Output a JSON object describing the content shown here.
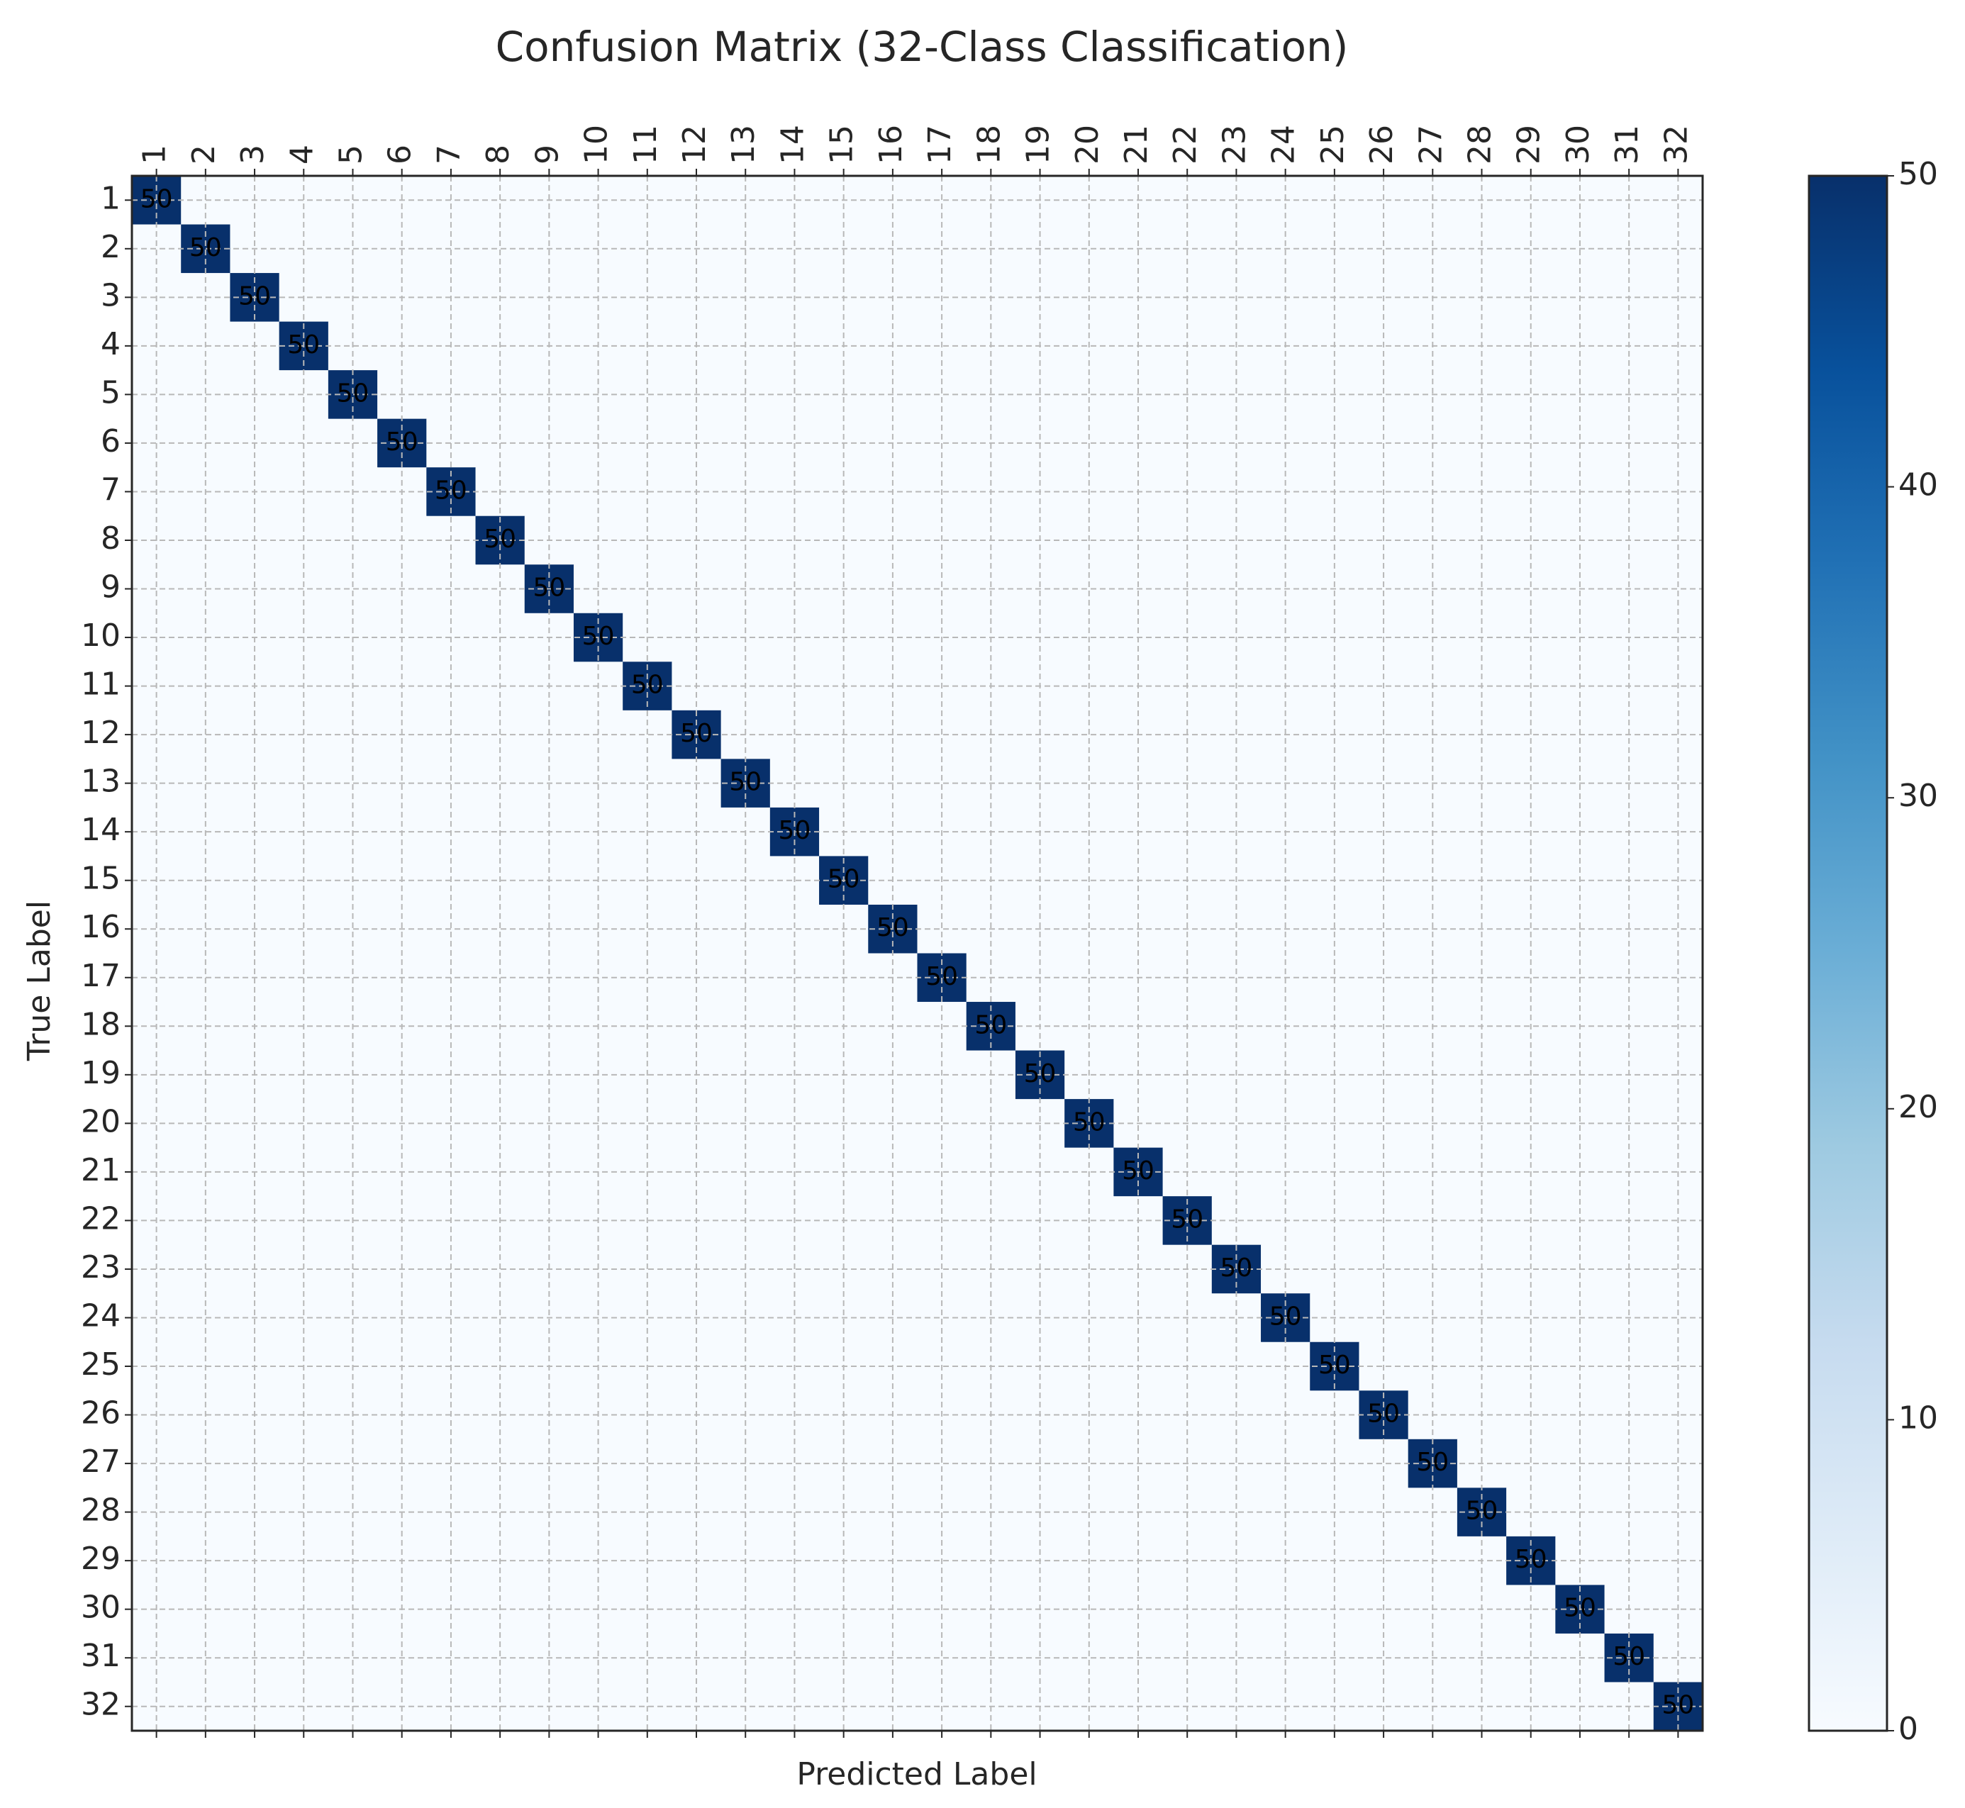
{
  "chart_data": {
    "type": "heatmap",
    "title": "Confusion Matrix (32-Class Classification)",
    "x_label": "Predicted Label",
    "y_label": "True Label",
    "x_categories": [
      "1",
      "2",
      "3",
      "4",
      "5",
      "6",
      "7",
      "8",
      "9",
      "10",
      "11",
      "12",
      "13",
      "14",
      "15",
      "16",
      "17",
      "18",
      "19",
      "20",
      "21",
      "22",
      "23",
      "24",
      "25",
      "26",
      "27",
      "28",
      "29",
      "30",
      "31",
      "32"
    ],
    "y_categories": [
      "1",
      "2",
      "3",
      "4",
      "5",
      "6",
      "7",
      "8",
      "9",
      "10",
      "11",
      "12",
      "13",
      "14",
      "15",
      "16",
      "17",
      "18",
      "19",
      "20",
      "21",
      "22",
      "23",
      "24",
      "25",
      "26",
      "27",
      "28",
      "29",
      "30",
      "31",
      "32"
    ],
    "values": [
      [
        50,
        0,
        0,
        0,
        0,
        0,
        0,
        0,
        0,
        0,
        0,
        0,
        0,
        0,
        0,
        0,
        0,
        0,
        0,
        0,
        0,
        0,
        0,
        0,
        0,
        0,
        0,
        0,
        0,
        0,
        0,
        0
      ],
      [
        0,
        50,
        0,
        0,
        0,
        0,
        0,
        0,
        0,
        0,
        0,
        0,
        0,
        0,
        0,
        0,
        0,
        0,
        0,
        0,
        0,
        0,
        0,
        0,
        0,
        0,
        0,
        0,
        0,
        0,
        0,
        0
      ],
      [
        0,
        0,
        50,
        0,
        0,
        0,
        0,
        0,
        0,
        0,
        0,
        0,
        0,
        0,
        0,
        0,
        0,
        0,
        0,
        0,
        0,
        0,
        0,
        0,
        0,
        0,
        0,
        0,
        0,
        0,
        0,
        0
      ],
      [
        0,
        0,
        0,
        50,
        0,
        0,
        0,
        0,
        0,
        0,
        0,
        0,
        0,
        0,
        0,
        0,
        0,
        0,
        0,
        0,
        0,
        0,
        0,
        0,
        0,
        0,
        0,
        0,
        0,
        0,
        0,
        0
      ],
      [
        0,
        0,
        0,
        0,
        50,
        0,
        0,
        0,
        0,
        0,
        0,
        0,
        0,
        0,
        0,
        0,
        0,
        0,
        0,
        0,
        0,
        0,
        0,
        0,
        0,
        0,
        0,
        0,
        0,
        0,
        0,
        0
      ],
      [
        0,
        0,
        0,
        0,
        0,
        50,
        0,
        0,
        0,
        0,
        0,
        0,
        0,
        0,
        0,
        0,
        0,
        0,
        0,
        0,
        0,
        0,
        0,
        0,
        0,
        0,
        0,
        0,
        0,
        0,
        0,
        0
      ],
      [
        0,
        0,
        0,
        0,
        0,
        0,
        50,
        0,
        0,
        0,
        0,
        0,
        0,
        0,
        0,
        0,
        0,
        0,
        0,
        0,
        0,
        0,
        0,
        0,
        0,
        0,
        0,
        0,
        0,
        0,
        0,
        0
      ],
      [
        0,
        0,
        0,
        0,
        0,
        0,
        0,
        50,
        0,
        0,
        0,
        0,
        0,
        0,
        0,
        0,
        0,
        0,
        0,
        0,
        0,
        0,
        0,
        0,
        0,
        0,
        0,
        0,
        0,
        0,
        0,
        0
      ],
      [
        0,
        0,
        0,
        0,
        0,
        0,
        0,
        0,
        50,
        0,
        0,
        0,
        0,
        0,
        0,
        0,
        0,
        0,
        0,
        0,
        0,
        0,
        0,
        0,
        0,
        0,
        0,
        0,
        0,
        0,
        0,
        0
      ],
      [
        0,
        0,
        0,
        0,
        0,
        0,
        0,
        0,
        0,
        50,
        0,
        0,
        0,
        0,
        0,
        0,
        0,
        0,
        0,
        0,
        0,
        0,
        0,
        0,
        0,
        0,
        0,
        0,
        0,
        0,
        0,
        0
      ],
      [
        0,
        0,
        0,
        0,
        0,
        0,
        0,
        0,
        0,
        0,
        50,
        0,
        0,
        0,
        0,
        0,
        0,
        0,
        0,
        0,
        0,
        0,
        0,
        0,
        0,
        0,
        0,
        0,
        0,
        0,
        0,
        0
      ],
      [
        0,
        0,
        0,
        0,
        0,
        0,
        0,
        0,
        0,
        0,
        0,
        50,
        0,
        0,
        0,
        0,
        0,
        0,
        0,
        0,
        0,
        0,
        0,
        0,
        0,
        0,
        0,
        0,
        0,
        0,
        0,
        0
      ],
      [
        0,
        0,
        0,
        0,
        0,
        0,
        0,
        0,
        0,
        0,
        0,
        0,
        50,
        0,
        0,
        0,
        0,
        0,
        0,
        0,
        0,
        0,
        0,
        0,
        0,
        0,
        0,
        0,
        0,
        0,
        0,
        0
      ],
      [
        0,
        0,
        0,
        0,
        0,
        0,
        0,
        0,
        0,
        0,
        0,
        0,
        0,
        50,
        0,
        0,
        0,
        0,
        0,
        0,
        0,
        0,
        0,
        0,
        0,
        0,
        0,
        0,
        0,
        0,
        0,
        0
      ],
      [
        0,
        0,
        0,
        0,
        0,
        0,
        0,
        0,
        0,
        0,
        0,
        0,
        0,
        0,
        50,
        0,
        0,
        0,
        0,
        0,
        0,
        0,
        0,
        0,
        0,
        0,
        0,
        0,
        0,
        0,
        0,
        0
      ],
      [
        0,
        0,
        0,
        0,
        0,
        0,
        0,
        0,
        0,
        0,
        0,
        0,
        0,
        0,
        0,
        50,
        0,
        0,
        0,
        0,
        0,
        0,
        0,
        0,
        0,
        0,
        0,
        0,
        0,
        0,
        0,
        0
      ],
      [
        0,
        0,
        0,
        0,
        0,
        0,
        0,
        0,
        0,
        0,
        0,
        0,
        0,
        0,
        0,
        0,
        50,
        0,
        0,
        0,
        0,
        0,
        0,
        0,
        0,
        0,
        0,
        0,
        0,
        0,
        0,
        0
      ],
      [
        0,
        0,
        0,
        0,
        0,
        0,
        0,
        0,
        0,
        0,
        0,
        0,
        0,
        0,
        0,
        0,
        0,
        50,
        0,
        0,
        0,
        0,
        0,
        0,
        0,
        0,
        0,
        0,
        0,
        0,
        0,
        0
      ],
      [
        0,
        0,
        0,
        0,
        0,
        0,
        0,
        0,
        0,
        0,
        0,
        0,
        0,
        0,
        0,
        0,
        0,
        0,
        50,
        0,
        0,
        0,
        0,
        0,
        0,
        0,
        0,
        0,
        0,
        0,
        0,
        0
      ],
      [
        0,
        0,
        0,
        0,
        0,
        0,
        0,
        0,
        0,
        0,
        0,
        0,
        0,
        0,
        0,
        0,
        0,
        0,
        0,
        50,
        0,
        0,
        0,
        0,
        0,
        0,
        0,
        0,
        0,
        0,
        0,
        0
      ],
      [
        0,
        0,
        0,
        0,
        0,
        0,
        0,
        0,
        0,
        0,
        0,
        0,
        0,
        0,
        0,
        0,
        0,
        0,
        0,
        0,
        50,
        0,
        0,
        0,
        0,
        0,
        0,
        0,
        0,
        0,
        0,
        0
      ],
      [
        0,
        0,
        0,
        0,
        0,
        0,
        0,
        0,
        0,
        0,
        0,
        0,
        0,
        0,
        0,
        0,
        0,
        0,
        0,
        0,
        0,
        50,
        0,
        0,
        0,
        0,
        0,
        0,
        0,
        0,
        0,
        0
      ],
      [
        0,
        0,
        0,
        0,
        0,
        0,
        0,
        0,
        0,
        0,
        0,
        0,
        0,
        0,
        0,
        0,
        0,
        0,
        0,
        0,
        0,
        0,
        50,
        0,
        0,
        0,
        0,
        0,
        0,
        0,
        0,
        0
      ],
      [
        0,
        0,
        0,
        0,
        0,
        0,
        0,
        0,
        0,
        0,
        0,
        0,
        0,
        0,
        0,
        0,
        0,
        0,
        0,
        0,
        0,
        0,
        0,
        50,
        0,
        0,
        0,
        0,
        0,
        0,
        0,
        0
      ],
      [
        0,
        0,
        0,
        0,
        0,
        0,
        0,
        0,
        0,
        0,
        0,
        0,
        0,
        0,
        0,
        0,
        0,
        0,
        0,
        0,
        0,
        0,
        0,
        0,
        50,
        0,
        0,
        0,
        0,
        0,
        0,
        0
      ],
      [
        0,
        0,
        0,
        0,
        0,
        0,
        0,
        0,
        0,
        0,
        0,
        0,
        0,
        0,
        0,
        0,
        0,
        0,
        0,
        0,
        0,
        0,
        0,
        0,
        0,
        50,
        0,
        0,
        0,
        0,
        0,
        0
      ],
      [
        0,
        0,
        0,
        0,
        0,
        0,
        0,
        0,
        0,
        0,
        0,
        0,
        0,
        0,
        0,
        0,
        0,
        0,
        0,
        0,
        0,
        0,
        0,
        0,
        0,
        0,
        50,
        0,
        0,
        0,
        0,
        0
      ],
      [
        0,
        0,
        0,
        0,
        0,
        0,
        0,
        0,
        0,
        0,
        0,
        0,
        0,
        0,
        0,
        0,
        0,
        0,
        0,
        0,
        0,
        0,
        0,
        0,
        0,
        0,
        0,
        50,
        0,
        0,
        0,
        0
      ],
      [
        0,
        0,
        0,
        0,
        0,
        0,
        0,
        0,
        0,
        0,
        0,
        0,
        0,
        0,
        0,
        0,
        0,
        0,
        0,
        0,
        0,
        0,
        0,
        0,
        0,
        0,
        0,
        0,
        50,
        0,
        0,
        0
      ],
      [
        0,
        0,
        0,
        0,
        0,
        0,
        0,
        0,
        0,
        0,
        0,
        0,
        0,
        0,
        0,
        0,
        0,
        0,
        0,
        0,
        0,
        0,
        0,
        0,
        0,
        0,
        0,
        0,
        0,
        50,
        0,
        0
      ],
      [
        0,
        0,
        0,
        0,
        0,
        0,
        0,
        0,
        0,
        0,
        0,
        0,
        0,
        0,
        0,
        0,
        0,
        0,
        0,
        0,
        0,
        0,
        0,
        0,
        0,
        0,
        0,
        0,
        0,
        0,
        50,
        0
      ],
      [
        0,
        0,
        0,
        0,
        0,
        0,
        0,
        0,
        0,
        0,
        0,
        0,
        0,
        0,
        0,
        0,
        0,
        0,
        0,
        0,
        0,
        0,
        0,
        0,
        0,
        0,
        0,
        0,
        0,
        0,
        0,
        50
      ]
    ],
    "colormap": "Blues",
    "zlim": [
      0,
      50
    ],
    "zticks": [
      0,
      10,
      20,
      30,
      40,
      50
    ],
    "grid": true
  }
}
